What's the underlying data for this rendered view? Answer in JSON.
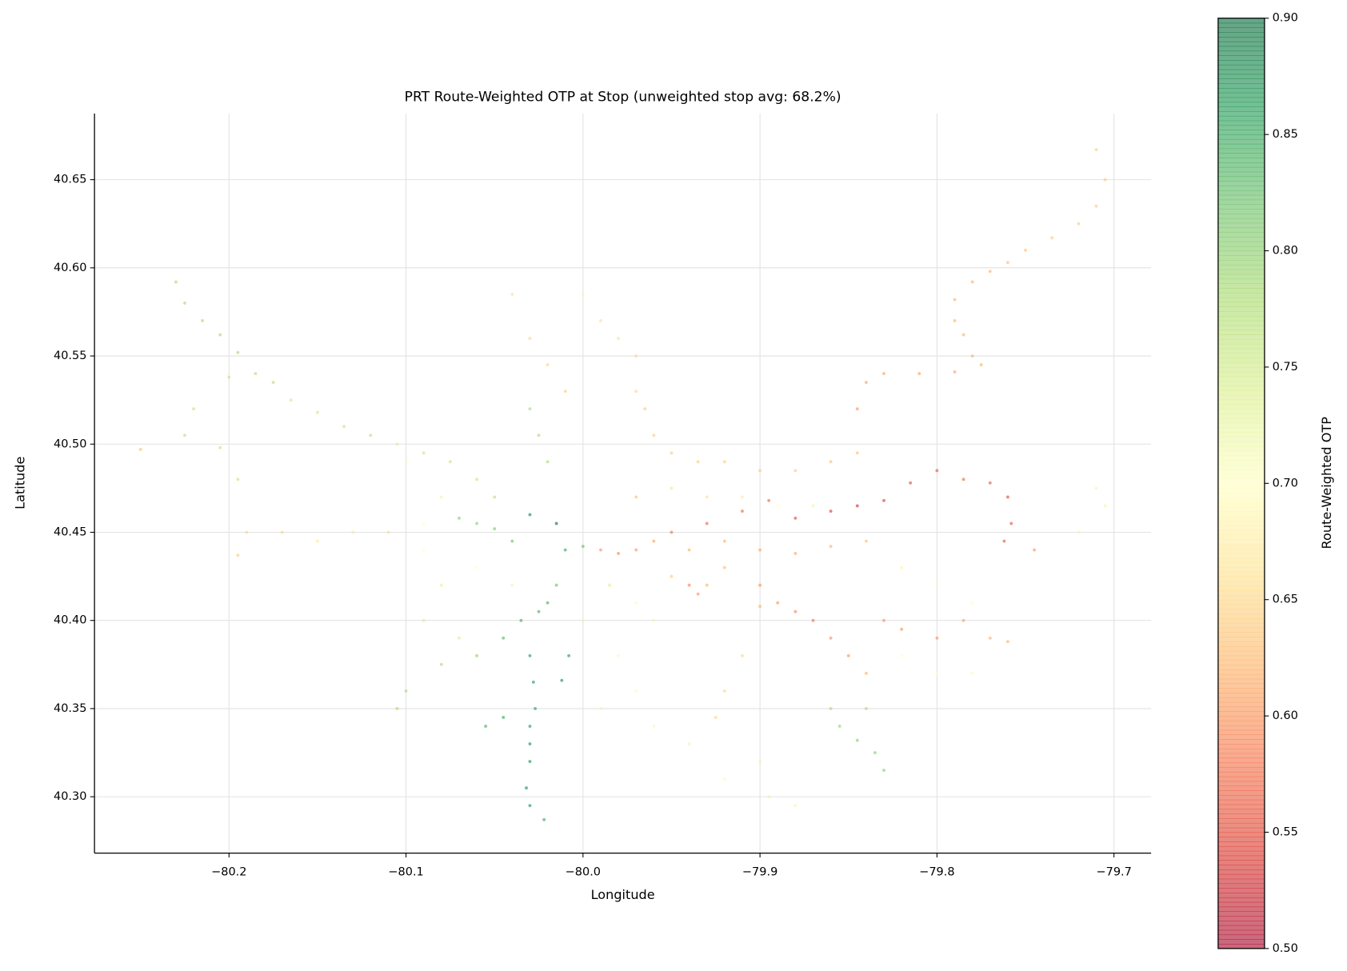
{
  "chart_data": {
    "type": "scatter",
    "title": "PRT Route-Weighted OTP at Stop (unweighted stop avg: 68.2%)",
    "xlabel": "Longitude",
    "ylabel": "Latitude",
    "colorbar_label": "Route-Weighted OTP",
    "colormap": "RdYlGn",
    "alpha": 0.6,
    "grid": true,
    "xlim": [
      -80.276,
      -79.679
    ],
    "ylim": [
      40.268,
      40.6875
    ],
    "xticks": [
      {
        "value": -80.2,
        "label": "−80.2"
      },
      {
        "value": -80.1,
        "label": "−80.1"
      },
      {
        "value": -80.0,
        "label": "−80.0"
      },
      {
        "value": -79.9,
        "label": "−79.9"
      },
      {
        "value": -79.8,
        "label": "−79.8"
      },
      {
        "value": -79.7,
        "label": "−79.7"
      }
    ],
    "yticks": [
      {
        "value": 40.3,
        "label": "40.30"
      },
      {
        "value": 40.35,
        "label": "40.35"
      },
      {
        "value": 40.4,
        "label": "40.40"
      },
      {
        "value": 40.45,
        "label": "40.45"
      },
      {
        "value": 40.5,
        "label": "40.50"
      },
      {
        "value": 40.55,
        "label": "40.55"
      },
      {
        "value": 40.6,
        "label": "40.60"
      },
      {
        "value": 40.65,
        "label": "40.65"
      }
    ],
    "clim": [
      0.5,
      0.9
    ],
    "cticks": [
      {
        "value": 0.5,
        "label": "0.50"
      },
      {
        "value": 0.55,
        "label": "0.55"
      },
      {
        "value": 0.6,
        "label": "0.60"
      },
      {
        "value": 0.65,
        "label": "0.65"
      },
      {
        "value": 0.7,
        "label": "0.70"
      },
      {
        "value": 0.75,
        "label": "0.75"
      },
      {
        "value": 0.8,
        "label": "0.80"
      },
      {
        "value": 0.85,
        "label": "0.85"
      },
      {
        "value": 0.9,
        "label": "0.90"
      }
    ],
    "x": [
      -80.23,
      -80.225,
      -80.215,
      -80.205,
      -80.195,
      -80.185,
      -80.175,
      -80.165,
      -80.15,
      -80.135,
      -80.12,
      -80.105,
      -80.09,
      -80.075,
      -80.06,
      -80.05,
      -80.25,
      -80.19,
      -80.17,
      -80.15,
      -80.13,
      -80.11,
      -80.09,
      -80.07,
      -80.06,
      -80.05,
      -80.04,
      -80.03,
      -80.015,
      -80.01,
      -80.0,
      -80.015,
      -80.02,
      -80.025,
      -80.035,
      -80.045,
      -80.06,
      -80.08,
      -80.1,
      -80.105,
      -80.03,
      -80.028,
      -80.027,
      -80.03,
      -80.03,
      -80.03,
      -80.032,
      -80.03,
      -80.022,
      -80.055,
      -80.045,
      -80.012,
      -80.008,
      -80.0,
      -79.99,
      -79.98,
      -79.97,
      -79.97,
      -79.965,
      -79.96,
      -79.95,
      -79.935,
      -79.92,
      -79.9,
      -79.88,
      -79.86,
      -79.845,
      -80.04,
      -80.03,
      -80.02,
      -80.01,
      -80.03,
      -80.025,
      -80.02,
      -79.71,
      -79.705,
      -79.71,
      -79.72,
      -79.735,
      -79.75,
      -79.76,
      -79.77,
      -79.78,
      -79.79,
      -79.79,
      -79.785,
      -79.78,
      -79.775,
      -79.79,
      -79.81,
      -79.83,
      -79.84,
      -79.845,
      -79.95,
      -79.93,
      -79.91,
      -79.895,
      -79.88,
      -79.86,
      -79.845,
      -79.83,
      -79.815,
      -79.8,
      -79.785,
      -79.77,
      -79.76,
      -79.758,
      -79.762,
      -79.745,
      -79.99,
      -79.98,
      -79.97,
      -79.96,
      -79.94,
      -79.92,
      -79.9,
      -79.88,
      -79.86,
      -79.84,
      -79.9,
      -79.89,
      -79.88,
      -79.87,
      -79.86,
      -79.85,
      -79.84,
      -79.83,
      -79.82,
      -79.8,
      -79.785,
      -79.77,
      -79.76,
      -79.93,
      -79.92,
      -79.9,
      -79.91,
      -79.92,
      -79.925,
      -79.86,
      -79.855,
      -79.845,
      -79.835,
      -79.83,
      -79.84,
      -79.98,
      -79.97,
      -79.96,
      -79.94,
      -79.92,
      -79.9,
      -79.895,
      -79.88,
      -79.99,
      -79.82,
      -79.8,
      -79.78,
      -79.82,
      -79.8,
      -79.78,
      -79.72,
      -79.71,
      -79.705,
      -80.1,
      -80.08,
      -80.06,
      -80.04,
      -80.08,
      -80.09,
      -80.07,
      -80.09,
      -79.97,
      -79.95,
      -79.93,
      -79.91,
      -79.89,
      -79.87,
      -79.97,
      -79.96,
      -80.0,
      -79.985,
      -79.95,
      -79.935,
      -79.94,
      -80.2,
      -80.22,
      -80.225,
      -80.205,
      -80.195,
      -80.195
    ],
    "y": [
      40.592,
      40.58,
      40.57,
      40.562,
      40.552,
      40.54,
      40.535,
      40.525,
      40.518,
      40.51,
      40.505,
      40.5,
      40.495,
      40.49,
      40.48,
      40.47,
      40.497,
      40.45,
      40.45,
      40.445,
      40.45,
      40.45,
      40.455,
      40.458,
      40.455,
      40.452,
      40.445,
      40.46,
      40.455,
      40.44,
      40.442,
      40.42,
      40.41,
      40.405,
      40.4,
      40.39,
      40.38,
      40.375,
      40.36,
      40.35,
      40.38,
      40.365,
      40.35,
      40.34,
      40.33,
      40.32,
      40.305,
      40.295,
      40.287,
      40.34,
      40.345,
      40.366,
      40.38,
      40.585,
      40.57,
      40.56,
      40.55,
      40.53,
      40.52,
      40.505,
      40.495,
      40.49,
      40.49,
      40.485,
      40.485,
      40.49,
      40.495,
      40.585,
      40.56,
      40.545,
      40.53,
      40.52,
      40.505,
      40.49,
      40.667,
      40.65,
      40.635,
      40.625,
      40.617,
      40.61,
      40.603,
      40.598,
      40.592,
      40.582,
      40.57,
      40.562,
      40.55,
      40.545,
      40.541,
      40.54,
      40.54,
      40.535,
      40.52,
      40.45,
      40.455,
      40.462,
      40.468,
      40.458,
      40.462,
      40.465,
      40.468,
      40.478,
      40.485,
      40.48,
      40.478,
      40.47,
      40.455,
      40.445,
      40.44,
      40.44,
      40.438,
      40.44,
      40.445,
      40.44,
      40.445,
      40.44,
      40.438,
      40.442,
      40.445,
      40.42,
      40.41,
      40.405,
      40.4,
      40.39,
      40.38,
      40.37,
      40.4,
      40.395,
      40.39,
      40.4,
      40.39,
      40.388,
      40.42,
      40.43,
      40.408,
      40.38,
      40.36,
      40.345,
      40.35,
      40.34,
      40.332,
      40.325,
      40.315,
      40.35,
      40.38,
      40.36,
      40.34,
      40.33,
      40.31,
      40.32,
      40.3,
      40.295,
      40.35,
      40.43,
      40.42,
      40.41,
      40.38,
      40.37,
      40.37,
      40.45,
      40.475,
      40.465,
      40.49,
      40.47,
      40.43,
      40.42,
      40.42,
      40.4,
      40.39,
      40.44,
      40.47,
      40.475,
      40.47,
      40.47,
      40.465,
      40.465,
      40.41,
      40.4,
      40.4,
      40.42,
      40.425,
      40.415,
      40.42,
      40.538,
      40.52,
      40.505,
      40.498,
      40.48,
      40.437
    ],
    "c": [
      0.78,
      0.78,
      0.78,
      0.78,
      0.78,
      0.77,
      0.77,
      0.75,
      0.75,
      0.76,
      0.77,
      0.74,
      0.76,
      0.76,
      0.76,
      0.77,
      0.63,
      0.65,
      0.65,
      0.67,
      0.67,
      0.66,
      0.7,
      0.8,
      0.8,
      0.81,
      0.82,
      0.88,
      0.9,
      0.85,
      0.82,
      0.82,
      0.84,
      0.84,
      0.84,
      0.83,
      0.8,
      0.78,
      0.78,
      0.78,
      0.86,
      0.86,
      0.86,
      0.86,
      0.87,
      0.87,
      0.87,
      0.87,
      0.85,
      0.84,
      0.85,
      0.87,
      0.86,
      0.68,
      0.66,
      0.66,
      0.65,
      0.65,
      0.64,
      0.64,
      0.64,
      0.64,
      0.64,
      0.64,
      0.64,
      0.63,
      0.63,
      0.66,
      0.65,
      0.65,
      0.64,
      0.78,
      0.78,
      0.78,
      0.64,
      0.64,
      0.64,
      0.64,
      0.64,
      0.63,
      0.63,
      0.62,
      0.62,
      0.62,
      0.62,
      0.62,
      0.62,
      0.62,
      0.61,
      0.61,
      0.61,
      0.61,
      0.6,
      0.58,
      0.57,
      0.57,
      0.57,
      0.55,
      0.54,
      0.53,
      0.54,
      0.55,
      0.56,
      0.57,
      0.56,
      0.55,
      0.56,
      0.56,
      0.6,
      0.6,
      0.59,
      0.6,
      0.61,
      0.62,
      0.62,
      0.61,
      0.61,
      0.62,
      0.63,
      0.6,
      0.6,
      0.59,
      0.58,
      0.6,
      0.6,
      0.62,
      0.6,
      0.6,
      0.6,
      0.61,
      0.62,
      0.62,
      0.62,
      0.63,
      0.62,
      0.65,
      0.65,
      0.65,
      0.78,
      0.79,
      0.8,
      0.8,
      0.8,
      0.78,
      0.71,
      0.71,
      0.71,
      0.72,
      0.71,
      0.72,
      0.72,
      0.72,
      0.72,
      0.68,
      0.69,
      0.7,
      0.7,
      0.7,
      0.71,
      0.68,
      0.68,
      0.68,
      0.71,
      0.72,
      0.7,
      0.68,
      0.73,
      0.74,
      0.74,
      0.7,
      0.63,
      0.66,
      0.66,
      0.67,
      0.7,
      0.72,
      0.71,
      0.72,
      0.72,
      0.74,
      0.64,
      0.6,
      0.59,
      0.76,
      0.76,
      0.77,
      0.76,
      0.76,
      0.64
    ]
  }
}
